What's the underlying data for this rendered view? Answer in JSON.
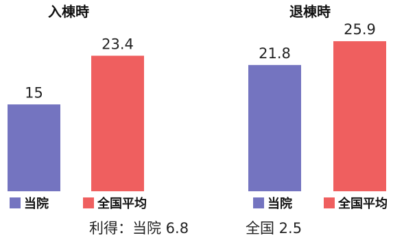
{
  "chart_data": [
    {
      "type": "bar",
      "title": "入棟時",
      "categories": [
        "当院",
        "全国平均"
      ],
      "values": [
        15,
        23.4
      ],
      "value_labels": [
        "15",
        "23.4"
      ],
      "colors": [
        "#7474c0",
        "#ef5f5f"
      ],
      "legend": [
        "当院",
        "全国平均"
      ],
      "legend_position": "bottom",
      "grid": false,
      "ylim": [
        0,
        26
      ]
    },
    {
      "type": "bar",
      "title": "退棟時",
      "categories": [
        "当院",
        "全国平均"
      ],
      "values": [
        21.8,
        25.9
      ],
      "value_labels": [
        "21.8",
        "25.9"
      ],
      "colors": [
        "#7474c0",
        "#ef5f5f"
      ],
      "legend": [
        "当院",
        "全国平均"
      ],
      "legend_position": "bottom",
      "grid": false,
      "ylim": [
        0,
        26
      ]
    }
  ],
  "footnote": {
    "part1": "利得：当院 6.8",
    "part2": "全国 2.5"
  }
}
